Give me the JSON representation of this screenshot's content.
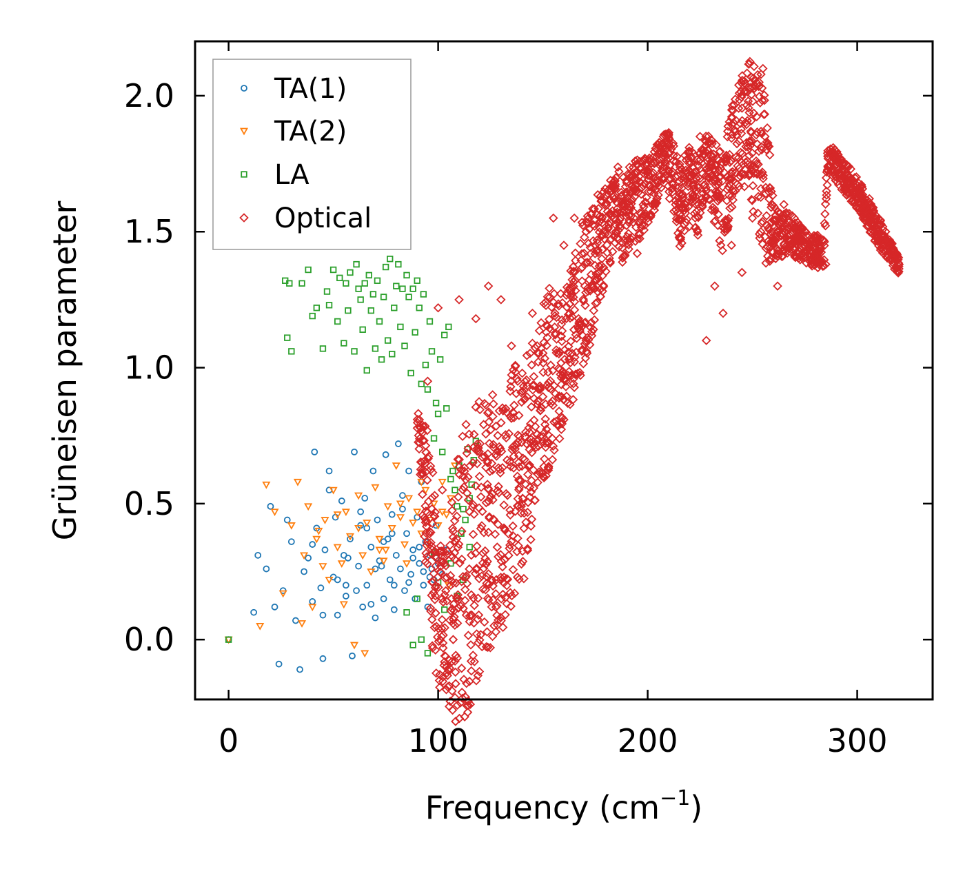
{
  "chart_data": {
    "type": "scatter",
    "title": "",
    "xlabel": "Frequency (cm",
    "xlabel_sup": "−1",
    "xlabel_close": ")",
    "ylabel": "Grüneisen parameter",
    "xlim": [
      -16,
      336
    ],
    "ylim": [
      -0.22,
      2.2
    ],
    "xticks": [
      0,
      100,
      200,
      300
    ],
    "xtick_labels": [
      "0",
      "100",
      "200",
      "300"
    ],
    "yticks": [
      0.0,
      0.5,
      1.0,
      1.5,
      2.0
    ],
    "ytick_labels": [
      "0.0",
      "0.5",
      "1.0",
      "1.5",
      "2.0"
    ],
    "grid": false,
    "legend_position": "top-left",
    "series": [
      {
        "name": "TA(1)",
        "marker": "circle",
        "color": "#1f77b4",
        "x": [
          0,
          12,
          14,
          18,
          20,
          22,
          24,
          26,
          28,
          30,
          32,
          34,
          36,
          38,
          40,
          41,
          42,
          44,
          45,
          46,
          48,
          50,
          51,
          52,
          54,
          55,
          56,
          58,
          59,
          60,
          62,
          63,
          64,
          65,
          66,
          68,
          69,
          70,
          71,
          72,
          74,
          75,
          76,
          77,
          78,
          79,
          80,
          81,
          82,
          83,
          84,
          85,
          86,
          87,
          88,
          89,
          90,
          91,
          92,
          93,
          94,
          95,
          96,
          97,
          98,
          99,
          100,
          102,
          104,
          48,
          52,
          57,
          61,
          66,
          70,
          74,
          79,
          83,
          88,
          93,
          40,
          45,
          56,
          63,
          68,
          73,
          78,
          86,
          91,
          96,
          99
        ],
        "y": [
          0.0,
          0.1,
          0.31,
          0.26,
          0.49,
          0.12,
          -0.09,
          0.18,
          0.44,
          0.36,
          0.07,
          -0.11,
          0.25,
          0.3,
          0.14,
          0.69,
          0.41,
          0.19,
          -0.07,
          0.33,
          0.62,
          0.23,
          0.45,
          0.09,
          0.51,
          0.31,
          0.16,
          0.37,
          -0.06,
          0.69,
          0.27,
          0.42,
          0.12,
          0.52,
          0.2,
          0.34,
          0.62,
          0.08,
          0.44,
          0.29,
          0.15,
          0.68,
          0.37,
          0.22,
          0.46,
          0.11,
          0.31,
          0.72,
          0.26,
          0.53,
          0.18,
          0.39,
          0.62,
          0.24,
          0.33,
          0.15,
          0.45,
          0.28,
          0.58,
          0.2,
          0.36,
          0.12,
          0.31,
          0.26,
          0.22,
          0.42,
          0.28,
          0.24,
          0.33,
          0.55,
          0.22,
          0.3,
          0.18,
          0.41,
          0.26,
          0.36,
          0.2,
          0.48,
          0.3,
          0.25,
          0.35,
          0.09,
          0.2,
          0.47,
          0.13,
          0.27,
          0.39,
          0.21,
          0.34,
          0.23,
          0.3
        ]
      },
      {
        "name": "TA(2)",
        "marker": "triangle-down",
        "color": "#ff7f0e",
        "x": [
          0,
          15,
          18,
          22,
          26,
          30,
          33,
          36,
          38,
          40,
          43,
          46,
          48,
          50,
          52,
          54,
          56,
          58,
          60,
          62,
          64,
          66,
          68,
          70,
          72,
          74,
          76,
          78,
          80,
          82,
          84,
          86,
          88,
          90,
          92,
          94,
          96,
          98,
          100,
          102,
          104,
          106,
          108,
          35,
          45,
          55,
          65,
          75,
          85,
          95,
          105,
          42,
          52,
          62,
          72,
          82,
          92,
          102
        ],
        "y": [
          0.0,
          0.05,
          0.57,
          0.47,
          0.17,
          0.42,
          0.58,
          0.31,
          0.49,
          0.12,
          0.4,
          0.44,
          0.22,
          0.55,
          0.34,
          0.28,
          0.47,
          0.38,
          -0.02,
          0.53,
          0.31,
          0.43,
          0.25,
          0.56,
          0.37,
          0.29,
          0.49,
          0.41,
          0.64,
          0.45,
          0.35,
          0.52,
          0.43,
          0.47,
          0.39,
          0.55,
          0.44,
          0.5,
          0.42,
          0.58,
          0.46,
          0.52,
          0.64,
          0.06,
          0.27,
          0.13,
          -0.05,
          0.33,
          0.28,
          0.35,
          0.2,
          0.37,
          0.46,
          0.41,
          0.33,
          0.5,
          0.58,
          0.47
        ]
      },
      {
        "name": "LA",
        "marker": "square",
        "color": "#2ca02c",
        "x": [
          0,
          27,
          28,
          29,
          30,
          35,
          38,
          40,
          42,
          45,
          47,
          48,
          50,
          52,
          53,
          55,
          56,
          57,
          58,
          60,
          61,
          62,
          63,
          64,
          65,
          66,
          67,
          68,
          69,
          70,
          71,
          72,
          73,
          74,
          75,
          76,
          77,
          78,
          79,
          80,
          81,
          82,
          83,
          84,
          85,
          86,
          87,
          88,
          89,
          90,
          91,
          92,
          93,
          94,
          95,
          96,
          97,
          98,
          99,
          100,
          101,
          102,
          103,
          104,
          105,
          106,
          107,
          108,
          109,
          110,
          111,
          112,
          113,
          114,
          115,
          116,
          117,
          118,
          85,
          88,
          90,
          92,
          95,
          98,
          100,
          103,
          106,
          109,
          112,
          115
        ],
        "y": [
          0.0,
          1.32,
          1.11,
          1.31,
          1.06,
          1.31,
          1.36,
          1.19,
          1.22,
          1.07,
          1.28,
          1.23,
          1.36,
          1.17,
          1.33,
          1.09,
          1.31,
          1.21,
          1.35,
          1.06,
          1.38,
          1.29,
          1.25,
          1.14,
          1.31,
          0.99,
          1.34,
          1.21,
          1.27,
          1.07,
          1.32,
          1.17,
          1.03,
          1.26,
          1.37,
          1.1,
          1.4,
          1.05,
          1.22,
          1.3,
          1.38,
          1.15,
          1.29,
          1.08,
          1.34,
          1.26,
          0.98,
          1.29,
          1.13,
          1.32,
          1.22,
          0.94,
          1.27,
          1.01,
          0.92,
          1.17,
          1.06,
          0.74,
          0.87,
          0.83,
          1.03,
          0.69,
          1.12,
          0.85,
          1.15,
          0.59,
          0.62,
          0.55,
          0.49,
          0.64,
          0.39,
          0.48,
          0.44,
          0.7,
          0.52,
          0.57,
          0.66,
          0.73,
          0.1,
          -0.02,
          0.15,
          0.0,
          -0.05,
          0.32,
          0.21,
          0.11,
          0.28,
          0.16,
          0.22,
          0.34
        ]
      },
      {
        "name": "Optical",
        "marker": "diamond",
        "color": "#d62728",
        "trend_x": [
          90,
          96,
          100,
          104,
          108,
          112,
          116,
          120,
          124,
          128,
          132,
          136,
          140,
          144,
          148,
          152,
          156,
          160,
          164,
          168,
          172,
          176,
          180,
          184,
          188,
          192,
          196,
          200,
          204,
          208,
          212,
          216,
          220,
          224,
          228,
          232,
          236,
          240,
          244,
          248,
          252,
          256,
          260,
          264,
          268,
          272,
          276,
          280,
          284,
          286,
          290,
          294,
          298,
          302,
          306,
          310,
          314,
          318,
          320
        ],
        "trend_y": [
          0.8,
          0.4,
          0.1,
          0.05,
          0.15,
          0.25,
          0.3,
          0.38,
          0.42,
          0.48,
          0.5,
          0.58,
          0.62,
          0.7,
          0.88,
          0.95,
          0.98,
          1.05,
          1.15,
          1.25,
          1.32,
          1.42,
          1.5,
          1.58,
          1.55,
          1.6,
          1.62,
          1.65,
          1.7,
          1.78,
          1.72,
          1.58,
          1.7,
          1.62,
          1.75,
          1.68,
          1.6,
          1.78,
          1.85,
          1.9,
          1.82,
          1.7,
          1.5,
          1.48,
          1.5,
          1.46,
          1.44,
          1.43,
          1.42,
          1.78,
          1.74,
          1.7,
          1.66,
          1.62,
          1.56,
          1.5,
          1.45,
          1.4,
          1.37
        ],
        "trend_spread": [
          0.05,
          0.35,
          0.3,
          0.25,
          0.5,
          0.55,
          0.55,
          0.5,
          0.5,
          0.45,
          0.45,
          0.45,
          0.42,
          0.4,
          0.3,
          0.35,
          0.3,
          0.25,
          0.28,
          0.28,
          0.25,
          0.22,
          0.18,
          0.15,
          0.2,
          0.15,
          0.15,
          0.12,
          0.12,
          0.08,
          0.15,
          0.18,
          0.12,
          0.15,
          0.12,
          0.15,
          0.18,
          0.2,
          0.2,
          0.25,
          0.3,
          0.35,
          0.1,
          0.08,
          0.08,
          0.07,
          0.06,
          0.06,
          0.06,
          0.06,
          0.06,
          0.06,
          0.06,
          0.06,
          0.06,
          0.06,
          0.05,
          0.04,
          0.03
        ],
        "x": [
          95,
          100,
          102,
          104,
          106,
          110,
          112,
          118,
          120,
          124,
          126,
          130,
          135,
          138,
          140,
          145,
          150,
          155,
          160,
          165,
          170,
          175,
          180,
          185,
          190,
          195,
          200,
          205,
          210,
          215,
          220,
          225,
          228,
          230,
          232,
          234,
          236,
          240,
          245,
          248,
          250,
          252,
          254,
          255,
          256,
          258,
          260,
          262,
          265,
          270,
          275,
          280,
          285,
          290,
          300,
          310,
          320
        ],
        "y": [
          0.95,
          1.22,
          0.55,
          -0.1,
          0.2,
          1.25,
          0.6,
          1.18,
          0.72,
          1.3,
          0.9,
          1.25,
          1.08,
          0.95,
          0.5,
          1.2,
          0.6,
          1.55,
          1.45,
          1.55,
          1.3,
          1.45,
          1.55,
          1.5,
          1.68,
          1.42,
          1.55,
          1.82,
          1.72,
          1.6,
          1.52,
          1.85,
          1.1,
          1.78,
          1.3,
          1.62,
          1.2,
          1.45,
          1.35,
          1.98,
          1.55,
          1.75,
          1.5,
          2.1,
          1.85,
          1.62,
          1.45,
          1.3,
          1.6,
          1.55,
          1.45,
          1.4,
          1.38,
          1.75,
          1.62,
          1.5,
          1.38
        ]
      }
    ]
  }
}
